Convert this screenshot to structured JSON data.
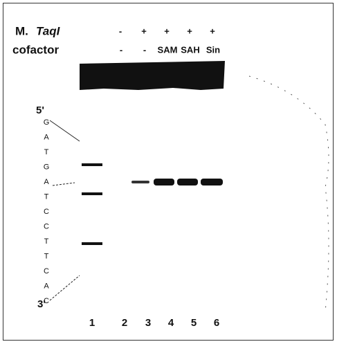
{
  "header": {
    "enzyme_prefix": "M.",
    "enzyme_name": "TaqI",
    "cofactor_label": "cofactor"
  },
  "enzyme_row": [
    "-",
    "+",
    "+",
    "+",
    "+"
  ],
  "cofactor_row": [
    "-",
    "-",
    "SAM",
    "SAH",
    "Sin"
  ],
  "sequence": {
    "five_prime": "5'",
    "three_prime": "3'",
    "bases": [
      "G",
      "A",
      "T",
      "G",
      "A",
      "T",
      "C",
      "C",
      "T",
      "T",
      "C",
      "A",
      "C"
    ]
  },
  "lanes": [
    "1",
    "2",
    "3",
    "4",
    "5",
    "6"
  ]
}
